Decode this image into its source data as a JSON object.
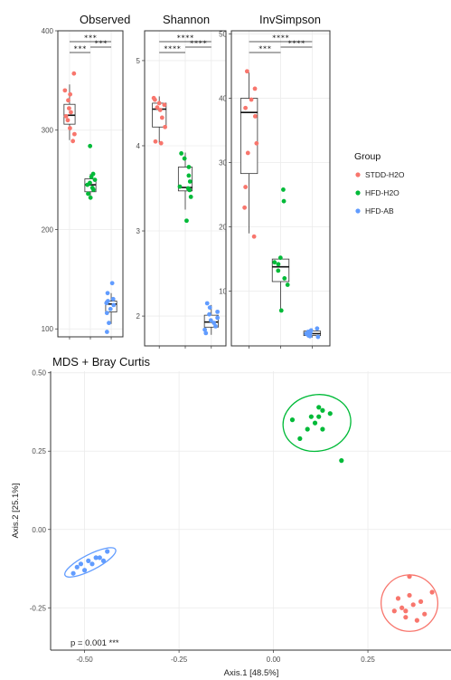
{
  "chart_data": [
    {
      "type": "box",
      "title": "Observed",
      "ylim": [
        92,
        400
      ],
      "yticks": [
        100,
        200,
        300,
        400
      ],
      "groups": [
        {
          "name": "STDD-H2O",
          "box": {
            "q1": 306,
            "median": 315,
            "q3": 326,
            "low": 290,
            "high": 346
          },
          "points": [
            357,
            340,
            336,
            330,
            322,
            318,
            314,
            310,
            302,
            296,
            289
          ]
        },
        {
          "name": "HFD-H2O",
          "box": {
            "q1": 238,
            "median": 245,
            "q3": 251,
            "low": 232,
            "high": 256
          },
          "points": [
            284,
            256,
            253,
            250,
            247,
            245,
            242,
            240,
            236,
            232
          ]
        },
        {
          "name": "HFD-AB",
          "box": {
            "q1": 117,
            "median": 125,
            "q3": 128,
            "low": 105,
            "high": 136
          },
          "points": [
            146,
            136,
            130,
            128,
            126,
            124,
            120,
            116,
            106,
            97
          ]
        }
      ],
      "significance": [
        "***",
        "***",
        "***"
      ]
    },
    {
      "type": "box",
      "title": "Shannon",
      "ylim": [
        1.65,
        5.35
      ],
      "yticks": [
        2,
        3,
        4,
        5
      ],
      "groups": [
        {
          "name": "STDD-H2O",
          "box": {
            "q1": 4.22,
            "median": 4.43,
            "q3": 4.5,
            "low": 4.03,
            "high": 4.58
          },
          "points": [
            4.56,
            4.54,
            4.5,
            4.48,
            4.45,
            4.42,
            4.33,
            4.22,
            4.05,
            4.03
          ]
        },
        {
          "name": "HFD-H2O",
          "box": {
            "q1": 3.47,
            "median": 3.51,
            "q3": 3.75,
            "low": 3.25,
            "high": 3.92
          },
          "points": [
            3.91,
            3.85,
            3.75,
            3.65,
            3.58,
            3.52,
            3.5,
            3.48,
            3.4,
            3.12
          ]
        },
        {
          "name": "HFD-AB",
          "box": {
            "q1": 1.87,
            "median": 1.93,
            "q3": 2.01,
            "low": 1.78,
            "high": 2.13
          },
          "points": [
            2.15,
            2.1,
            2.05,
            2.02,
            1.98,
            1.95,
            1.92,
            1.88,
            1.84,
            1.8
          ]
        }
      ],
      "significance": [
        "****",
        "****",
        "****"
      ]
    },
    {
      "type": "box",
      "title": "InvSimpson",
      "ylim": [
        1.5,
        50.5
      ],
      "yticks": [
        10,
        20,
        30,
        40,
        50
      ],
      "groups": [
        {
          "name": "STDD-H2O",
          "box": {
            "q1": 28.3,
            "median": 37.8,
            "q3": 40.0,
            "low": 19.0,
            "high": 44.0
          },
          "points": [
            44.2,
            41.5,
            39.8,
            38.5,
            37.2,
            33.0,
            31.5,
            26.2,
            23.0,
            18.5
          ]
        },
        {
          "name": "HFD-H2O",
          "box": {
            "q1": 11.5,
            "median": 13.8,
            "q3": 15.0,
            "low": 7.2,
            "high": 15.3
          },
          "points": [
            25.8,
            24.0,
            15.2,
            14.5,
            14.2,
            13.2,
            12.0,
            11.0,
            7.0
          ]
        },
        {
          "name": "HFD-AB",
          "box": {
            "q1": 3.1,
            "median": 3.4,
            "q3": 3.8,
            "low": 2.8,
            "high": 4.2
          },
          "points": [
            4.2,
            3.9,
            3.7,
            3.5,
            3.4,
            3.3,
            3.1,
            3.0,
            2.9
          ]
        }
      ],
      "significance": [
        "***",
        "****",
        "****"
      ]
    },
    {
      "type": "scatter",
      "title": "MDS + Bray Curtis",
      "xlabel": "Axis.1   [48.5%]",
      "ylabel": "Axis.2  [25.1%]",
      "xlim": [
        -0.59,
        0.47
      ],
      "ylim": [
        -0.385,
        0.505
      ],
      "xticks": [
        -0.5,
        -0.25,
        0.0,
        0.25
      ],
      "yticks": [
        -0.25,
        0.0,
        0.25,
        0.5
      ],
      "annotation": "p = 0.001 ***",
      "series": [
        {
          "name": "STDD-H2O",
          "points": [
            [
              0.32,
              -0.26
            ],
            [
              0.33,
              -0.22
            ],
            [
              0.34,
              -0.25
            ],
            [
              0.35,
              -0.28
            ],
            [
              0.36,
              -0.21
            ],
            [
              0.36,
              -0.15
            ],
            [
              0.37,
              -0.24
            ],
            [
              0.38,
              -0.29
            ],
            [
              0.39,
              -0.23
            ],
            [
              0.4,
              -0.27
            ],
            [
              0.42,
              -0.2
            ],
            [
              0.35,
              -0.26
            ]
          ],
          "ellipse": {
            "cx": 0.36,
            "cy": -0.235,
            "rx": 0.075,
            "ry": 0.09,
            "angle": -4
          }
        },
        {
          "name": "HFD-H2O",
          "points": [
            [
              0.05,
              0.35
            ],
            [
              0.07,
              0.29
            ],
            [
              0.09,
              0.32
            ],
            [
              0.1,
              0.36
            ],
            [
              0.11,
              0.34
            ],
            [
              0.12,
              0.39
            ],
            [
              0.12,
              0.36
            ],
            [
              0.13,
              0.38
            ],
            [
              0.13,
              0.32
            ],
            [
              0.15,
              0.37
            ],
            [
              0.18,
              0.22
            ]
          ],
          "ellipse": {
            "cx": 0.115,
            "cy": 0.34,
            "rx": 0.09,
            "ry": 0.09,
            "angle": -10
          }
        },
        {
          "name": "HFD-AB",
          "points": [
            [
              -0.53,
              -0.14
            ],
            [
              -0.52,
              -0.12
            ],
            [
              -0.51,
              -0.11
            ],
            [
              -0.5,
              -0.13
            ],
            [
              -0.49,
              -0.1
            ],
            [
              -0.48,
              -0.11
            ],
            [
              -0.47,
              -0.09
            ],
            [
              -0.46,
              -0.09
            ],
            [
              -0.45,
              -0.1
            ],
            [
              -0.44,
              -0.07
            ]
          ],
          "ellipse": {
            "cx": -0.485,
            "cy": -0.105,
            "rx": 0.075,
            "ry": 0.025,
            "angle": -27
          }
        }
      ]
    }
  ],
  "legend": {
    "title": "Group",
    "entries": [
      {
        "label": "STDD-H2O",
        "color": "#F8766D"
      },
      {
        "label": "HFD-H2O",
        "color": "#00BA38"
      },
      {
        "label": "HFD-AB",
        "color": "#619CFF"
      }
    ]
  }
}
